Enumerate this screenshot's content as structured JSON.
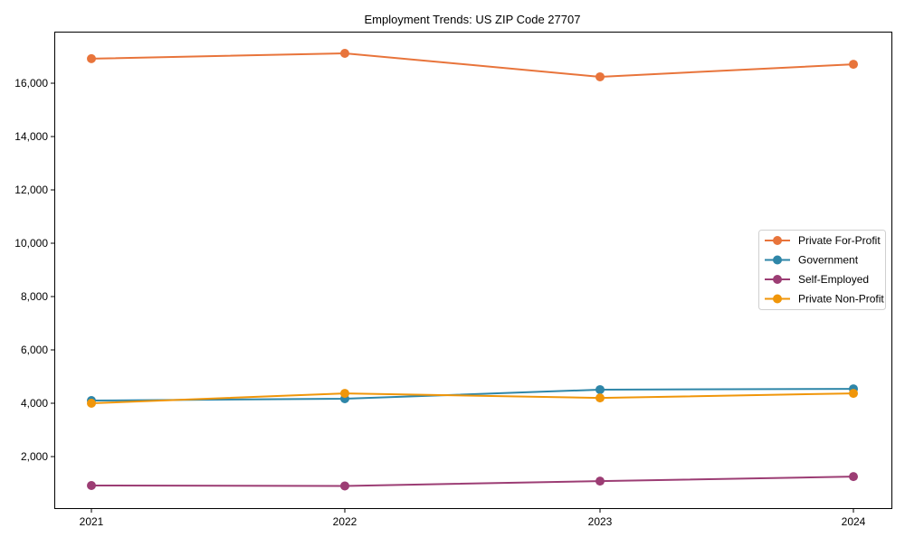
{
  "chart_data": {
    "type": "line",
    "title": "Employment Trends: US ZIP Code 27707",
    "xlabel": "",
    "ylabel": "",
    "categories": [
      "2021",
      "2022",
      "2023",
      "2024"
    ],
    "ylim": [
      0,
      17800
    ],
    "yticks": [
      2000,
      4000,
      6000,
      8000,
      10000,
      12000,
      14000,
      16000
    ],
    "ytick_labels": [
      "2,000",
      "4,000",
      "6,000",
      "8,000",
      "10,000",
      "12,000",
      "14,000",
      "16,000"
    ],
    "grid": false,
    "legend_position": "center right",
    "series": [
      {
        "name": "Private For-Profit",
        "color": "#E8743B",
        "values": [
          16920,
          17120,
          16240,
          16710
        ]
      },
      {
        "name": "Government",
        "color": "#2E86A8",
        "values": [
          4100,
          4170,
          4510,
          4540
        ]
      },
      {
        "name": "Self-Employed",
        "color": "#9C3D74",
        "values": [
          915,
          900,
          1080,
          1250
        ]
      },
      {
        "name": "Private Non-Profit",
        "color": "#F0960A",
        "values": [
          4000,
          4370,
          4200,
          4370
        ]
      }
    ]
  }
}
